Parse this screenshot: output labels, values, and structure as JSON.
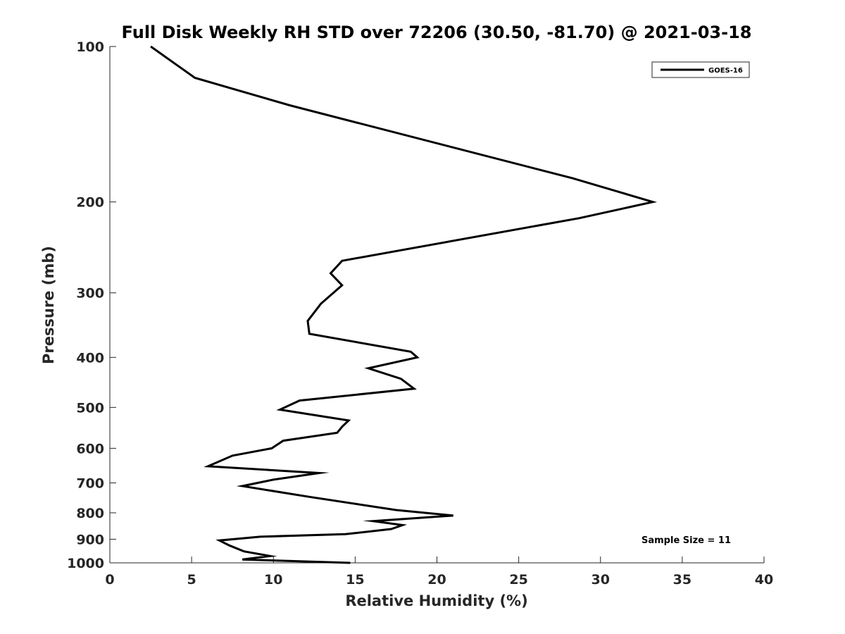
{
  "chart_data": {
    "type": "line",
    "title": "Full Disk Weekly RH STD over 72206 (30.50, -81.70) @ 2021-03-18",
    "xlabel": "Relative Humidity (%)",
    "ylabel": "Pressure (mb)",
    "xlim": [
      0,
      40
    ],
    "ylim": [
      100,
      1000
    ],
    "y_scale": "log",
    "y_reversed": true,
    "x_ticks": [
      "0",
      "5",
      "10",
      "15",
      "20",
      "25",
      "30",
      "35",
      "40"
    ],
    "y_ticks": [
      "100",
      "200",
      "300",
      "400",
      "500",
      "600",
      "700",
      "800",
      "900",
      "1000"
    ],
    "grid": false,
    "legend_position": "top-right",
    "series": [
      {
        "name": "GOES-16",
        "color": "#000000",
        "x": [
          2.5,
          5.2,
          11.0,
          28.3,
          33.2,
          28.7,
          14.2,
          13.5,
          14.2,
          12.9,
          12.1,
          12.2,
          18.4,
          18.8,
          15.8,
          17.8,
          18.6,
          11.6,
          10.4,
          14.6,
          14.2,
          13.9,
          10.6,
          9.9,
          7.5,
          6.0,
          12.8,
          10.0,
          8.1,
          12.2,
          17.5,
          21.0,
          16.1,
          17.9,
          17.2,
          14.4,
          9.2,
          6.7,
          7.3,
          8.2,
          9.8,
          8.1,
          14.7
        ],
        "y": [
          100,
          115,
          130,
          180,
          200,
          215,
          260,
          275,
          290,
          315,
          340,
          360,
          390,
          400,
          420,
          440,
          460,
          485,
          505,
          530,
          545,
          560,
          580,
          600,
          620,
          650,
          670,
          690,
          710,
          745,
          790,
          810,
          830,
          845,
          860,
          880,
          890,
          905,
          925,
          950,
          970,
          985,
          1000
        ]
      }
    ],
    "annotations": [
      "Sample Size = 11"
    ]
  }
}
